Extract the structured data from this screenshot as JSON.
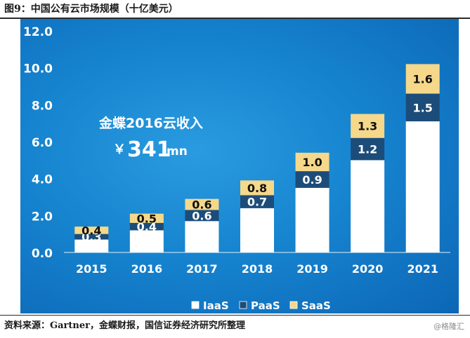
{
  "figure": {
    "title": "图9：中国公有云市场规模（十亿美元）",
    "source": "资料来源：Gartner，金蝶财报，国信证券经济研究所整理",
    "watermark": "@格隆汇"
  },
  "annotation": {
    "line1": "金蝶2016云收入",
    "currency": "￥",
    "amount": "341",
    "unit": "mn"
  },
  "chart_data": {
    "type": "bar",
    "stacked": true,
    "categories": [
      "2015",
      "2016",
      "2017",
      "2018",
      "2019",
      "2020",
      "2021"
    ],
    "series": [
      {
        "name": "IaaS",
        "values": [
          0.7,
          1.2,
          1.7,
          2.4,
          3.5,
          5.0,
          7.1
        ],
        "color": "#ffffff",
        "label_color": "#0d2a4a"
      },
      {
        "name": "PaaS",
        "values": [
          0.3,
          0.4,
          0.6,
          0.7,
          0.9,
          1.2,
          1.5
        ],
        "labels": [
          "0.3",
          "0.4",
          "0.6",
          "0.7",
          "0.9",
          "1.2",
          "1.5"
        ],
        "color": "#1c4c79",
        "label_color": "#ffffff"
      },
      {
        "name": "SaaS",
        "values": [
          0.4,
          0.5,
          0.6,
          0.8,
          1.0,
          1.3,
          1.6
        ],
        "labels": [
          "0.4",
          "0.5",
          "0.6",
          "0.8",
          "1.0",
          "1.3",
          "1.6"
        ],
        "color": "#f5d88a",
        "label_color": "#111111"
      }
    ],
    "ylim": [
      0,
      12
    ],
    "yticks": [
      "0.0",
      "2.0",
      "4.0",
      "6.0",
      "8.0",
      "10.0",
      "12.0"
    ],
    "grid": false,
    "legend_position": "bottom-right"
  }
}
